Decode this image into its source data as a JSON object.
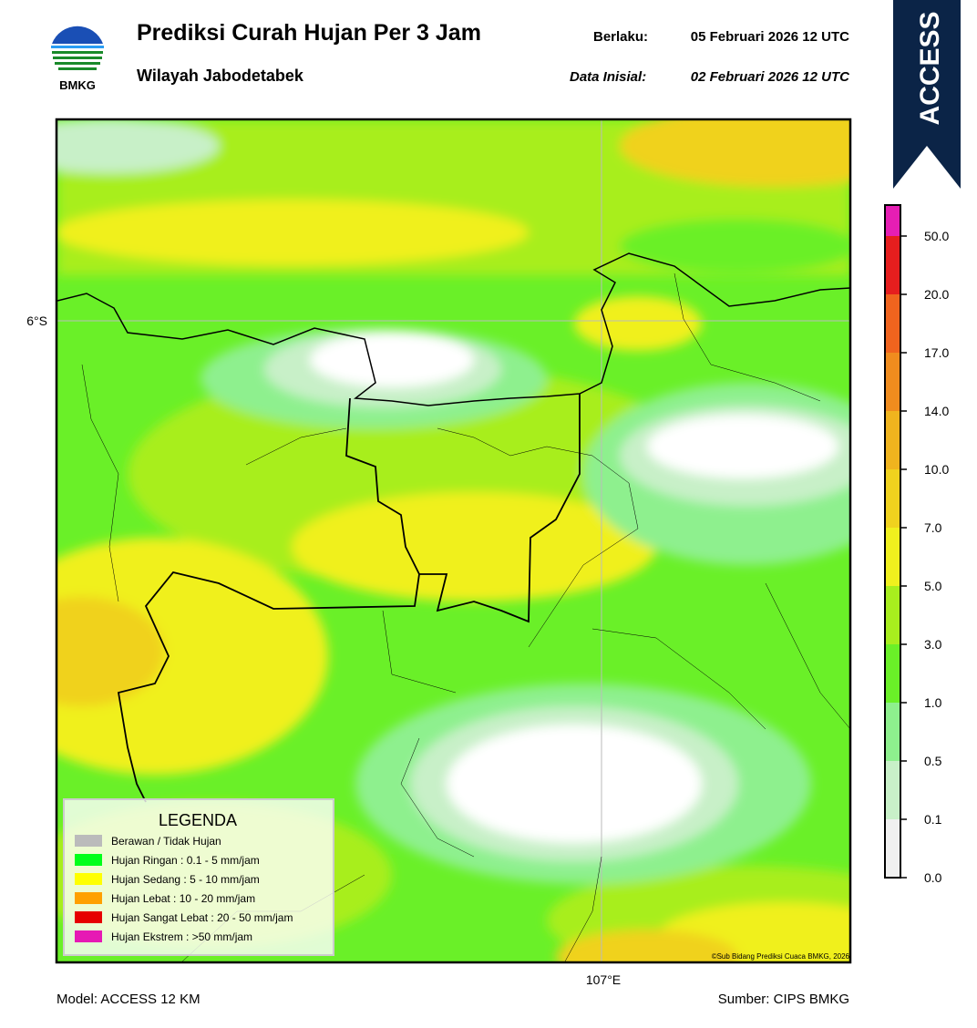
{
  "header": {
    "logo_text": "BMKG",
    "title": "Prediksi Curah Hujan Per 3 Jam",
    "subtitle": "Wilayah Jabodetabek",
    "valid_label": "Berlaku:",
    "valid_time": "05 Februari 2026 12 UTC",
    "init_label": "Data Inisial:",
    "init_time": "02 Februari 2026 12 UTC"
  },
  "badge": "ACCESS",
  "map": {
    "lat_label": "6°S",
    "lon_label": "107°E",
    "copyright": "©Sub Bidang Prediksi Cuaca BMKG, 2026"
  },
  "legend": {
    "title": "LEGENDA",
    "items": [
      "Berawan / Tidak Hujan",
      "Hujan Ringan : 0.1 - 5 mm/jam",
      "Hujan Sedang : 5 - 10 mm/jam",
      "Hujan Lebat : 10 - 20 mm/jam",
      "Hujan Sangat Lebat : 20 - 50 mm/jam",
      "Hujan Ekstrem : >50 mm/jam"
    ]
  },
  "colorbar": {
    "ticks": [
      "0.0",
      "0.1",
      "0.5",
      "1.0",
      "3.0",
      "5.0",
      "7.0",
      "10.0",
      "14.0",
      "17.0",
      "20.0",
      "50.0"
    ]
  },
  "footer": {
    "model": "Model: ACCESS 12 KM",
    "source": "Sumber: CIPS BMKG"
  }
}
